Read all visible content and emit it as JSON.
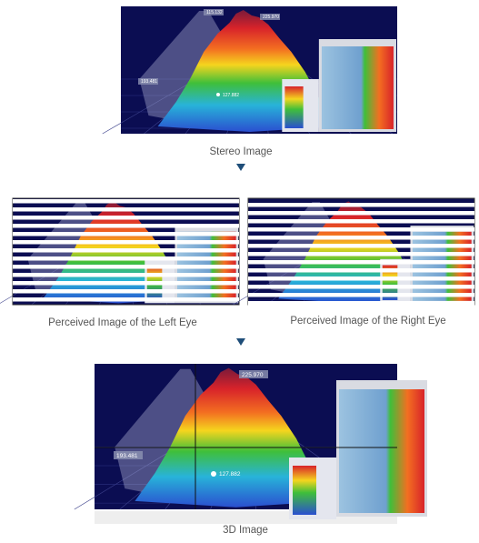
{
  "stereo": {
    "caption": "Stereo Image",
    "labels": [
      "115.132",
      "225.970",
      "193.481",
      "127.882"
    ]
  },
  "left_eye": {
    "caption": "Perceived Image of the Left Eye"
  },
  "right_eye": {
    "caption": "Perceived Image of the Right Eye"
  },
  "three_d": {
    "caption": "3D Image",
    "labels": [
      "225.970",
      "193.481",
      "127.882"
    ]
  }
}
